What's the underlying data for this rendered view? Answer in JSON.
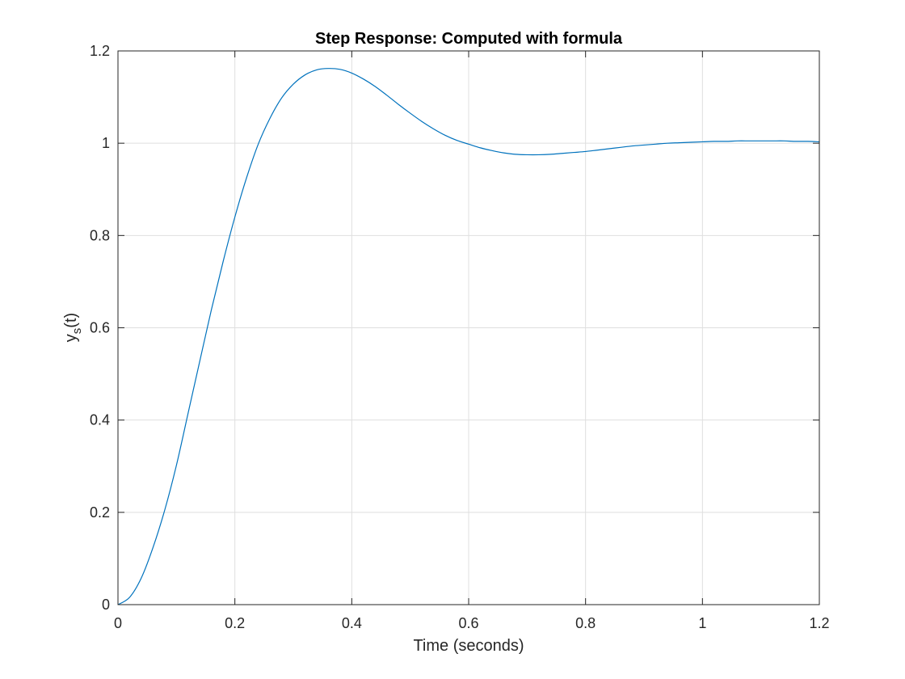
{
  "chart_data": {
    "type": "line",
    "title": "Step Response: Computed with formula",
    "xlabel": "Time (seconds)",
    "ylabel_main": "y",
    "ylabel_subscript": "s",
    "ylabel_suffix": "(t)",
    "xlim": [
      0,
      1.2
    ],
    "ylim": [
      0,
      1.2
    ],
    "xticks": [
      0,
      0.2,
      0.4,
      0.6,
      0.8,
      1,
      1.2
    ],
    "yticks": [
      0,
      0.2,
      0.4,
      0.6,
      0.8,
      1,
      1.2
    ],
    "xtick_labels": [
      "0",
      "0.2",
      "0.4",
      "0.6",
      "0.8",
      "1",
      "1.2"
    ],
    "ytick_labels": [
      "0",
      "0.2",
      "0.4",
      "0.6",
      "0.8",
      "1",
      "1.2"
    ],
    "grid": true,
    "series": [
      {
        "color": "#0072BD",
        "x": [
          0,
          0.02,
          0.04,
          0.06,
          0.08,
          0.1,
          0.12,
          0.14,
          0.16,
          0.18,
          0.2,
          0.22,
          0.24,
          0.26,
          0.28,
          0.3,
          0.32,
          0.34,
          0.36,
          0.38,
          0.4,
          0.42,
          0.44,
          0.46,
          0.48,
          0.5,
          0.52,
          0.54,
          0.56,
          0.58,
          0.6,
          0.62,
          0.64,
          0.66,
          0.68,
          0.7,
          0.72,
          0.74,
          0.76,
          0.78,
          0.8,
          0.82,
          0.84,
          0.86,
          0.88,
          0.9,
          0.92,
          0.94,
          0.96,
          0.98,
          1.0,
          1.02,
          1.04,
          1.06,
          1.08,
          1.1,
          1.12,
          1.14,
          1.16,
          1.18,
          1.2
        ],
        "y": [
          0,
          0.016,
          0.058,
          0.124,
          0.205,
          0.302,
          0.415,
          0.528,
          0.64,
          0.744,
          0.84,
          0.925,
          0.998,
          1.054,
          1.098,
          1.128,
          1.148,
          1.159,
          1.162,
          1.16,
          1.152,
          1.139,
          1.123,
          1.104,
          1.084,
          1.065,
          1.047,
          1.031,
          1.017,
          1.006,
          0.998,
          0.99,
          0.984,
          0.979,
          0.976,
          0.975,
          0.975,
          0.976,
          0.978,
          0.98,
          0.982,
          0.985,
          0.988,
          0.991,
          0.994,
          0.996,
          0.998,
          1.0,
          1.001,
          1.002,
          1.003,
          1.004,
          1.004,
          1.005,
          1.005,
          1.005,
          1.005,
          1.005,
          1.004,
          1.004,
          1.003
        ]
      }
    ]
  }
}
